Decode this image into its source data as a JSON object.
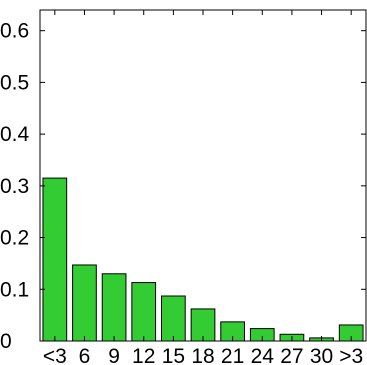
{
  "chart_data": {
    "type": "bar",
    "categories": [
      "<3",
      "6",
      "9",
      "12",
      "15",
      "18",
      "21",
      "24",
      "27",
      "30",
      ">3"
    ],
    "values": [
      0.315,
      0.147,
      0.13,
      0.113,
      0.087,
      0.062,
      0.037,
      0.024,
      0.013,
      0.006,
      0.031
    ],
    "ylim": [
      0,
      0.64
    ],
    "yticks": [
      0,
      0.1,
      0.2,
      0.3,
      0.4,
      0.5,
      0.6
    ],
    "ytick_labels": [
      "0",
      "0.1",
      "0.2",
      "0.3",
      "0.4",
      "0.5",
      "0.6"
    ],
    "title": "",
    "xlabel": "",
    "ylabel": "",
    "grid": false,
    "bar_color": "#33cc33",
    "edge_color": "#000000"
  }
}
